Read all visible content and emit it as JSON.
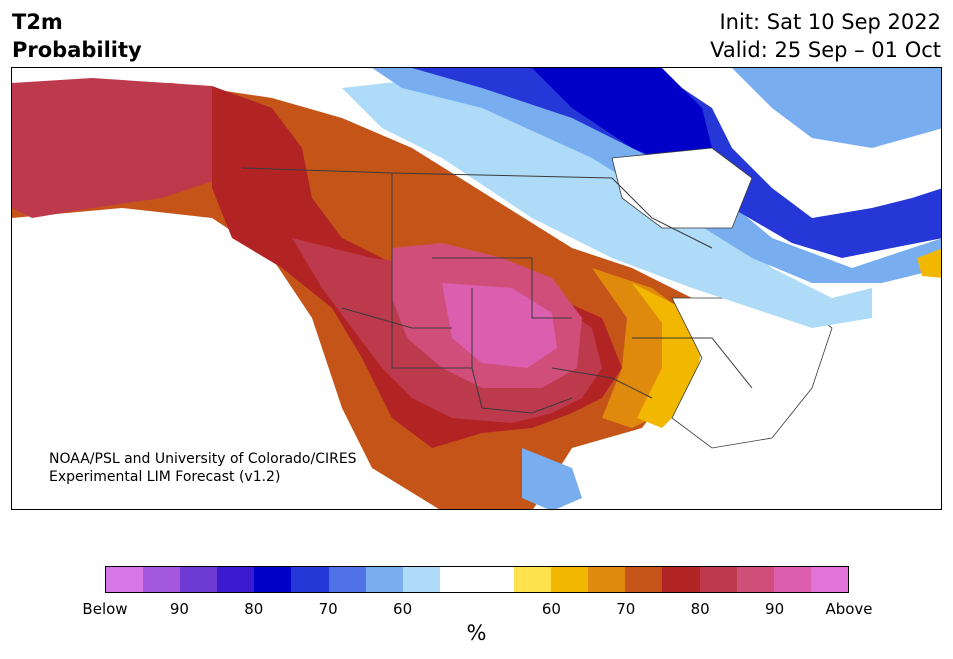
{
  "header": {
    "title_line1": "T2m",
    "title_line2": "Probability",
    "init_text": "Init: Sat 10 Sep 2022",
    "valid_text": "Valid: 25 Sep – 01 Oct"
  },
  "credit": {
    "line1": "NOAA/PSL and University of Colorado/CIRES",
    "line2": "Experimental LIM Forecast (v1.2)"
  },
  "colorbar": {
    "colors": [
      "#d677e8",
      "#a458dd",
      "#6d3ad4",
      "#3a1bd0",
      "#0000c8",
      "#2637d8",
      "#4f72e6",
      "#78aef0",
      "#aedcf8",
      "#ffffff",
      "#ffffff",
      "#ffe24d",
      "#f2b700",
      "#df8a0c",
      "#c55419",
      "#b22424",
      "#bd3a4d",
      "#d04e7a",
      "#db5fae",
      "#e273d8"
    ],
    "tick_labels": [
      "Below",
      "90",
      "80",
      "70",
      "60",
      "60",
      "70",
      "80",
      "90",
      "Above"
    ],
    "unit": "%"
  },
  "map": {
    "colors": {
      "above_90": "#db5fae",
      "above_80": "#bd3a4d",
      "above_70": "#b22424",
      "above_60": "#c55419",
      "above_50": "#df8a0c",
      "warm_light": "#f2b700",
      "warm_pale": "#ffe24d",
      "neutral": "#ffffff",
      "cold_pale": "#aedcf8",
      "cold_light": "#78aef0",
      "cold_mid": "#4f72e6",
      "cold_strong": "#2637d8",
      "cold_deep": "#0000c8",
      "border": "#3a3a3a"
    }
  }
}
